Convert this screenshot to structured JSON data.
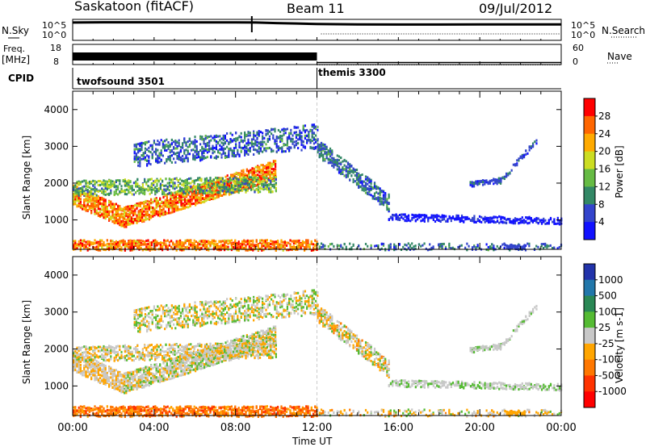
{
  "header": {
    "station": "Saskatoon (fitACF)",
    "beam": "Beam 11",
    "date": "09/Jul/2012"
  },
  "side_labels": {
    "nsky": "N.Sky",
    "freq_a": "Freq.",
    "freq_b": "[MHz]",
    "cpid": "CPID",
    "nsearch": "N.Search",
    "nave": "Nave"
  },
  "chart_data": [
    {
      "type": "line",
      "name": "noise-panel",
      "ylabel": "N.Sky",
      "ylabel_right": "N.Search",
      "ylim": [
        0,
        100000
      ],
      "yticks_left": [
        "10^5",
        "10^0"
      ],
      "yticks_right": [
        "10^5",
        "10^0"
      ],
      "xlim": [
        0,
        24
      ],
      "series": [
        {
          "values_hours": [
            0,
            2,
            4,
            6,
            8,
            9,
            10,
            11,
            12,
            14,
            16,
            18,
            20,
            22,
            24
          ],
          "values": [
            60000,
            70000,
            72000,
            68000,
            65000,
            60000,
            40000,
            30000,
            20000,
            15000,
            14000,
            14000,
            15000,
            16000,
            16000
          ]
        }
      ]
    },
    {
      "type": "line",
      "name": "frequency-panel",
      "ylabel": "Freq. [MHz]",
      "ylabel_right": "Nave",
      "ylim_left": [
        8,
        18
      ],
      "ylim_right": [
        0,
        60
      ],
      "yticks_left": [
        "18",
        "8"
      ],
      "yticks_right": [
        "60",
        "0"
      ],
      "xlim": [
        0,
        24
      ],
      "series": [
        {
          "x": [
            0,
            12
          ],
          "y": [
            12,
            12
          ]
        },
        {
          "x": [
            12,
            24
          ],
          "y": [
            9,
            9
          ]
        }
      ]
    },
    {
      "type": "table",
      "name": "cpid-panel",
      "ylabel": "CPID",
      "rows": [
        {
          "start_hour": 0,
          "label": "twofsound 3501"
        },
        {
          "start_hour": 12,
          "label": "themis 3300"
        }
      ]
    },
    {
      "type": "heatmap",
      "name": "power-panel",
      "ylabel": "Slant Range [km]",
      "ylim": [
        200,
        4500
      ],
      "yticks": [
        1000,
        2000,
        3000,
        4000
      ],
      "xlim": [
        0,
        24
      ],
      "colorbar_label": "Power [dB]",
      "colorbar_ticks": [
        "28",
        "24",
        "20",
        "16",
        "12",
        "8",
        "4"
      ],
      "colorbar_colors": [
        "#ff0000",
        "#ff6600",
        "#ffaa00",
        "#ccdd22",
        "#66bb44",
        "#338866",
        "#3344cc",
        "#1111ff"
      ]
    },
    {
      "type": "heatmap",
      "name": "velocity-panel",
      "ylabel": "Slant Range [km]",
      "ylim": [
        200,
        4500
      ],
      "yticks": [
        1000,
        2000,
        3000,
        4000
      ],
      "xlim": [
        0,
        24
      ],
      "colorbar_label": "Velocity [m s-1]",
      "colorbar_ticks": [
        "1000",
        "500",
        "100",
        "25",
        "-25",
        "-100",
        "-500",
        "-1000"
      ],
      "colorbar_colors": [
        "#2233aa",
        "#2277aa",
        "#2a8855",
        "#55bb33",
        "#c8c8c8",
        "#ffa500",
        "#ff7700",
        "#ff3300",
        "#ff0000"
      ]
    }
  ],
  "xaxis": {
    "label": "Time UT",
    "ticks": [
      "00:00",
      "04:00",
      "08:00",
      "12:00",
      "16:00",
      "20:00",
      "00:00"
    ]
  }
}
